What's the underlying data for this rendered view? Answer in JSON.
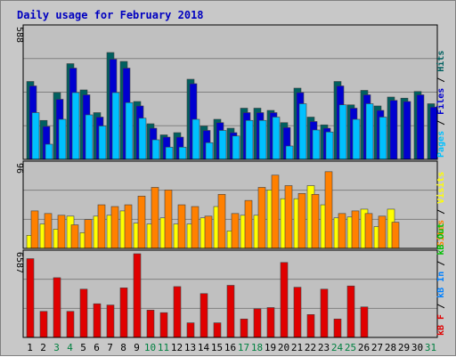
{
  "title": "Daily usage for February 2018",
  "colors": {
    "hits": "#006060",
    "files": "#0000d0",
    "pages": "#00c0ff",
    "visits": "#ffff00",
    "sites": "#ff8000",
    "kbout": "#00c000",
    "kbin": "#0080ff",
    "kbf": "#e00000",
    "title": "#0000c0",
    "plot_bg": "#c0c0c0"
  },
  "chart_data": [
    {
      "type": "bar",
      "name": "hits-files-pages",
      "y_max_label": "588",
      "ylim": [
        0,
        588
      ],
      "grid": true,
      "right_label": {
        "pages": "Pages",
        "files": "Files",
        "hits": "Hits",
        "sep": " / "
      },
      "series": [
        {
          "name": "Hits",
          "color": "#006060",
          "values": [
            350,
            175,
            300,
            430,
            312,
            210,
            480,
            440,
            260,
            160,
            110,
            120,
            360,
            150,
            180,
            140,
            230,
            230,
            220,
            165,
            320,
            190,
            155,
            350,
            245,
            310,
            240,
            280,
            275,
            305,
            250
          ]
        },
        {
          "name": "Files",
          "color": "#0000d0",
          "values": [
            330,
            148,
            270,
            410,
            290,
            190,
            450,
            410,
            240,
            140,
            100,
            100,
            340,
            130,
            165,
            120,
            210,
            210,
            210,
            143,
            300,
            170,
            140,
            330,
            230,
            290,
            220,
            265,
            260,
            290,
            235
          ]
        },
        {
          "name": "Pages",
          "color": "#00c0ff",
          "values": [
            210,
            68,
            180,
            300,
            200,
            150,
            300,
            255,
            185,
            88,
            55,
            55,
            180,
            75,
            130,
            105,
            175,
            175,
            190,
            60,
            250,
            132,
            123,
            245,
            180,
            250,
            190,
            0,
            0,
            0,
            0
          ]
        }
      ]
    },
    {
      "type": "bar",
      "name": "visits-sites",
      "y_max_label": "96",
      "ylim": [
        0,
        96
      ],
      "grid": true,
      "right_label": {
        "sites": "Sites",
        "visits": "Visits",
        "sep": " / "
      },
      "series": [
        {
          "name": "Visits",
          "color": "#ffff00",
          "values": [
            15,
            28,
            22,
            37,
            18,
            37,
            38,
            43,
            29,
            28,
            35,
            28,
            28,
            35,
            48,
            20,
            38,
            38,
            67,
            57,
            57,
            72,
            50,
            35,
            36,
            45,
            25,
            45,
            0,
            0,
            0
          ]
        },
        {
          "name": "Sites",
          "color": "#ff8000",
          "values": [
            43,
            40,
            38,
            27,
            33,
            50,
            48,
            50,
            60,
            70,
            67,
            50,
            48,
            37,
            62,
            40,
            55,
            70,
            84,
            72,
            63,
            62,
            88,
            40,
            43,
            40,
            37,
            30,
            0,
            0,
            0
          ]
        }
      ]
    },
    {
      "type": "bar",
      "name": "kbytes",
      "y_max_label": "6587",
      "ylim": [
        0,
        6587
      ],
      "grid": true,
      "right_label": {
        "kbf": "kB F",
        "kbin": "kB In",
        "kbout": "kB Out",
        "sep": " / "
      },
      "series": [
        {
          "name": "kB F",
          "color": "#e00000",
          "values": [
            6200,
            2050,
            4700,
            2050,
            3800,
            2650,
            2550,
            3900,
            6587,
            2150,
            1950,
            4000,
            1150,
            3450,
            1150,
            4100,
            1450,
            2250,
            2350,
            5900,
            3950,
            1800,
            3800,
            1450,
            4050,
            2400,
            0,
            0,
            0,
            0,
            0
          ]
        }
      ]
    }
  ],
  "x_labels": [
    "1",
    "2",
    "3",
    "4",
    "5",
    "6",
    "7",
    "8",
    "9",
    "10",
    "11",
    "12",
    "13",
    "14",
    "15",
    "16",
    "17",
    "18",
    "19",
    "20",
    "21",
    "22",
    "23",
    "24",
    "25",
    "26",
    "27",
    "28",
    "29",
    "30",
    "31"
  ],
  "weekend_color": "#008040",
  "weekday_color": "#000000",
  "weekend_days": [
    3,
    4,
    10,
    11,
    17,
    18,
    24,
    25,
    31
  ]
}
